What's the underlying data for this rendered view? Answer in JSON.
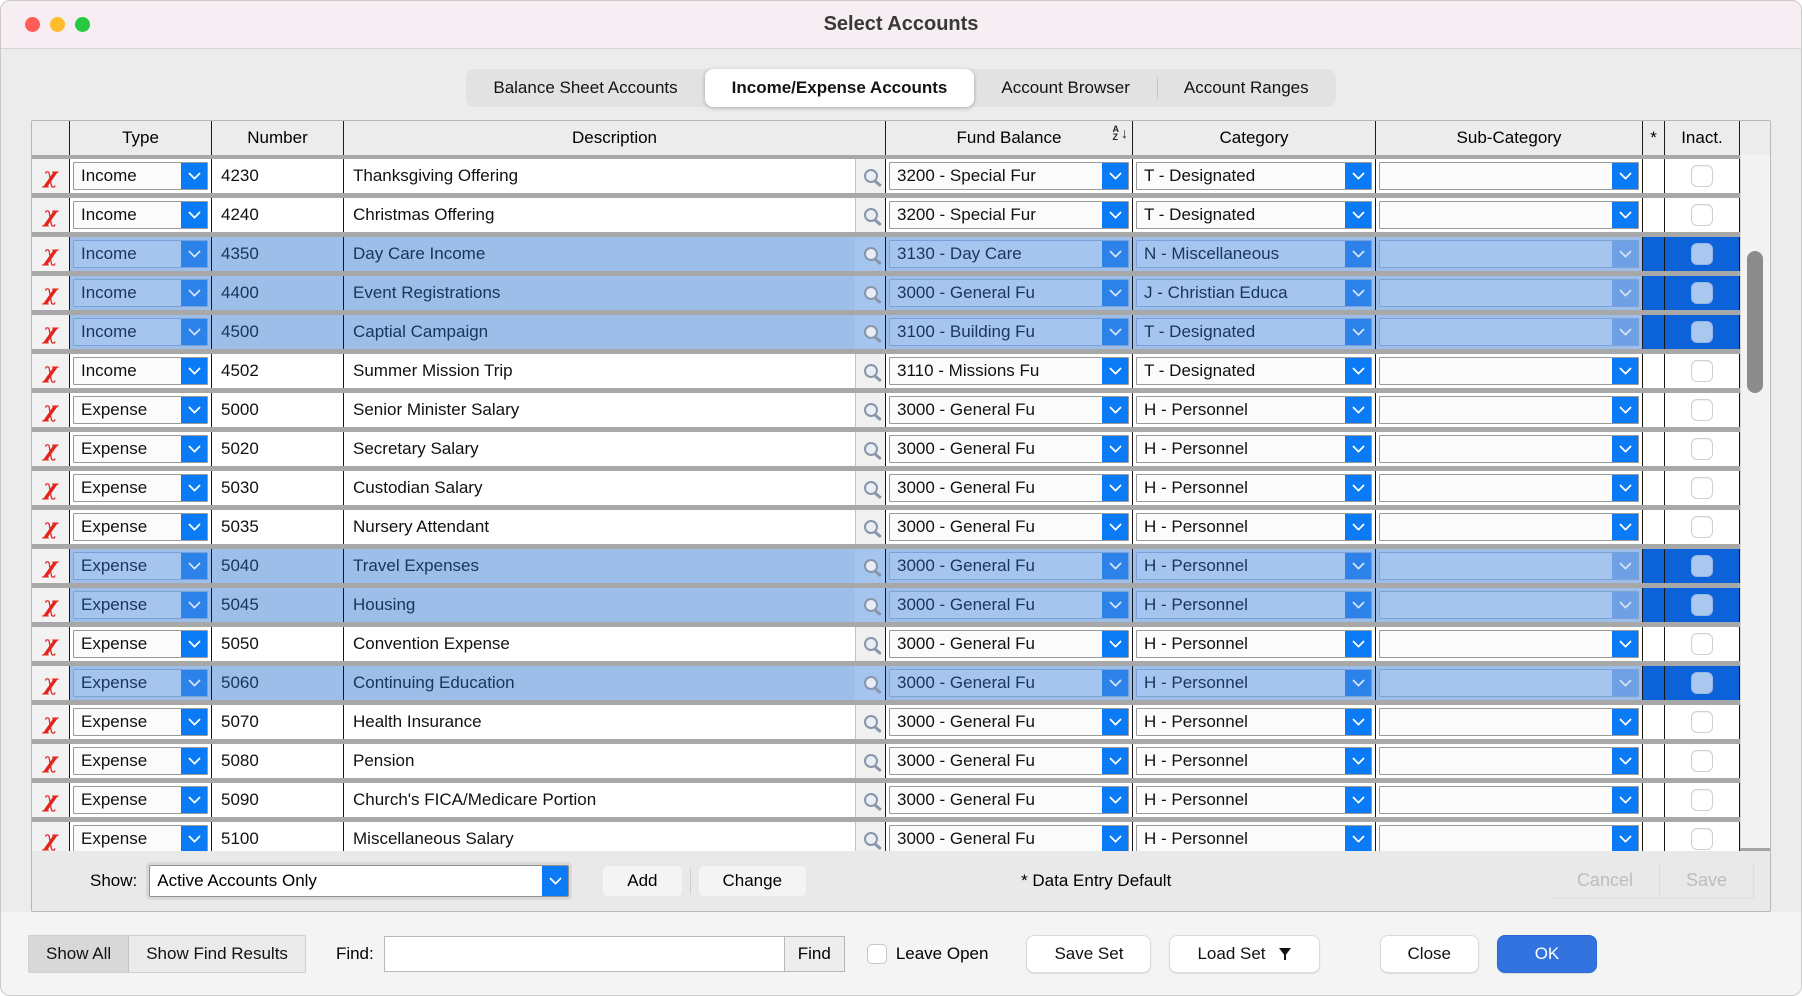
{
  "window": {
    "title": "Select Accounts"
  },
  "tabs": [
    {
      "label": "Balance Sheet Accounts",
      "selected": false
    },
    {
      "label": "Income/Expense Accounts",
      "selected": true
    },
    {
      "label": "Account Browser",
      "selected": false
    },
    {
      "label": "Account Ranges",
      "selected": false
    }
  ],
  "table": {
    "headers": {
      "type": "Type",
      "number": "Number",
      "description": "Description",
      "fund_balance": "Fund Balance",
      "category": "Category",
      "sub_category": "Sub-Category",
      "star": "*",
      "inactive": "Inact."
    },
    "sort_icon": "az-sort-descending-arrow",
    "rows": [
      {
        "type": "Income",
        "number": "4230",
        "description": "Thanksgiving Offering",
        "fund_balance": "3200 - Special Fur",
        "category": "T - Designated",
        "sub_category": "",
        "selected": false,
        "inactive": false
      },
      {
        "type": "Income",
        "number": "4240",
        "description": "Christmas Offering",
        "fund_balance": "3200 - Special Fur",
        "category": "T - Designated",
        "sub_category": "",
        "selected": false,
        "inactive": false
      },
      {
        "type": "Income",
        "number": "4350",
        "description": "Day Care Income",
        "fund_balance": "3130 - Day Care",
        "category": "N - Miscellaneous",
        "sub_category": "",
        "selected": true,
        "inactive": false
      },
      {
        "type": "Income",
        "number": "4400",
        "description": "Event Registrations",
        "fund_balance": "3000 - General Fu",
        "category": "J - Christian Educa",
        "sub_category": "",
        "selected": true,
        "inactive": false
      },
      {
        "type": "Income",
        "number": "4500",
        "description": "Captial Campaign",
        "fund_balance": "3100 - Building Fu",
        "category": "T - Designated",
        "sub_category": "",
        "selected": true,
        "inactive": false
      },
      {
        "type": "Income",
        "number": "4502",
        "description": "Summer Mission Trip",
        "fund_balance": "3110 - Missions Fu",
        "category": "T - Designated",
        "sub_category": "",
        "selected": false,
        "inactive": false
      },
      {
        "type": "Expense",
        "number": "5000",
        "description": "Senior Minister Salary",
        "fund_balance": "3000 - General Fu",
        "category": "H - Personnel",
        "sub_category": "",
        "selected": false,
        "inactive": false
      },
      {
        "type": "Expense",
        "number": "5020",
        "description": "Secretary Salary",
        "fund_balance": "3000 - General Fu",
        "category": "H - Personnel",
        "sub_category": "",
        "selected": false,
        "inactive": false
      },
      {
        "type": "Expense",
        "number": "5030",
        "description": "Custodian Salary",
        "fund_balance": "3000 - General Fu",
        "category": "H - Personnel",
        "sub_category": "",
        "selected": false,
        "inactive": false
      },
      {
        "type": "Expense",
        "number": "5035",
        "description": "Nursery Attendant",
        "fund_balance": "3000 - General Fu",
        "category": "H - Personnel",
        "sub_category": "",
        "selected": false,
        "inactive": false
      },
      {
        "type": "Expense",
        "number": "5040",
        "description": "Travel Expenses",
        "fund_balance": "3000 - General Fu",
        "category": "H - Personnel",
        "sub_category": "",
        "selected": true,
        "inactive": false
      },
      {
        "type": "Expense",
        "number": "5045",
        "description": "Housing",
        "fund_balance": "3000 - General Fu",
        "category": "H - Personnel",
        "sub_category": "",
        "selected": true,
        "inactive": false
      },
      {
        "type": "Expense",
        "number": "5050",
        "description": "Convention Expense",
        "fund_balance": "3000 - General Fu",
        "category": "H - Personnel",
        "sub_category": "",
        "selected": false,
        "inactive": false
      },
      {
        "type": "Expense",
        "number": "5060",
        "description": "Continuing Education",
        "fund_balance": "3000 - General Fu",
        "category": "H - Personnel",
        "sub_category": "",
        "selected": true,
        "inactive": false
      },
      {
        "type": "Expense",
        "number": "5070",
        "description": "Health Insurance",
        "fund_balance": "3000 - General Fu",
        "category": "H - Personnel",
        "sub_category": "",
        "selected": false,
        "inactive": false
      },
      {
        "type": "Expense",
        "number": "5080",
        "description": "Pension",
        "fund_balance": "3000 - General Fu",
        "category": "H - Personnel",
        "sub_category": "",
        "selected": false,
        "inactive": false
      },
      {
        "type": "Expense",
        "number": "5090",
        "description": "Church's FICA/Medicare Portion",
        "fund_balance": "3000 - General Fu",
        "category": "H - Personnel",
        "sub_category": "",
        "selected": false,
        "inactive": false
      },
      {
        "type": "Expense",
        "number": "5100",
        "description": "Miscellaneous Salary",
        "fund_balance": "3000 - General Fu",
        "category": "H - Personnel",
        "sub_category": "",
        "selected": false,
        "inactive": false
      }
    ]
  },
  "footer": {
    "show_label": "Show:",
    "show_value": "Active Accounts Only",
    "add_label": "Add",
    "change_label": "Change",
    "default_note": "* Data Entry Default",
    "cancel_label": "Cancel",
    "save_label": "Save"
  },
  "bottom_bar": {
    "show_all": "Show All",
    "show_find_results": "Show Find Results",
    "find_label": "Find:",
    "find_value": "",
    "find_button": "Find",
    "leave_open_label": "Leave Open",
    "leave_open_checked": false,
    "save_set": "Save Set",
    "load_set": "Load Set",
    "close": "Close",
    "ok": "OK"
  },
  "colors": {
    "accent_blue": "#0b7bf5",
    "selection_row": "#9cbee9",
    "selection_dark": "#0c62d9",
    "ok_button": "#3273e0",
    "delete_icon": "#e3251f",
    "titlebar": "#f7eef4"
  }
}
